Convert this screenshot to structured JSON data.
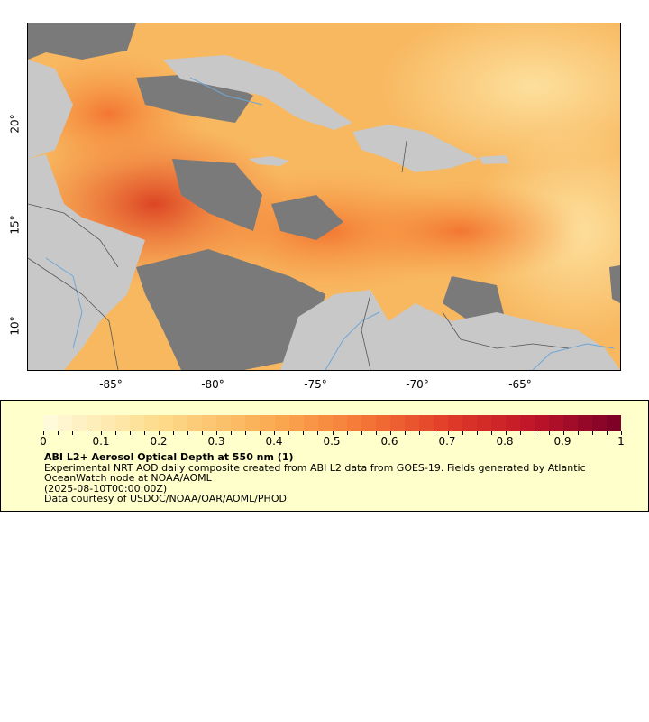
{
  "map": {
    "y_axis_labels": [
      "20°",
      "15°",
      "10°"
    ],
    "x_axis_labels": [
      "-85°",
      "-80°",
      "-75°",
      "-70°",
      "-65°"
    ],
    "colors": {
      "land": "#c8c8c8",
      "no_data": "#7a7a7a",
      "rivers": "#6fa6d6",
      "borders": "#555555",
      "aod_low": "#fff7c2",
      "aod_mid": "#f4a23c",
      "aod_high": "#9b0a2a"
    }
  },
  "legend": {
    "colorbar_labels": [
      "0",
      "0.1",
      "0.2",
      "0.3",
      "0.4",
      "0.5",
      "0.6",
      "0.7",
      "0.8",
      "0.9",
      "1"
    ],
    "title": "ABI L2+ Aerosol Optical Depth at 550 nm (1)",
    "description": "Experimental NRT AOD daily composite created from ABI L2 data from GOES-19. Fields generated by Atlantic OceanWatch node at NOAA/AOML",
    "time": "(2025-08-10T00:00:00Z)",
    "credit": "Data courtesy of USDOC/NOAA/OAR/AOML/PHOD"
  }
}
